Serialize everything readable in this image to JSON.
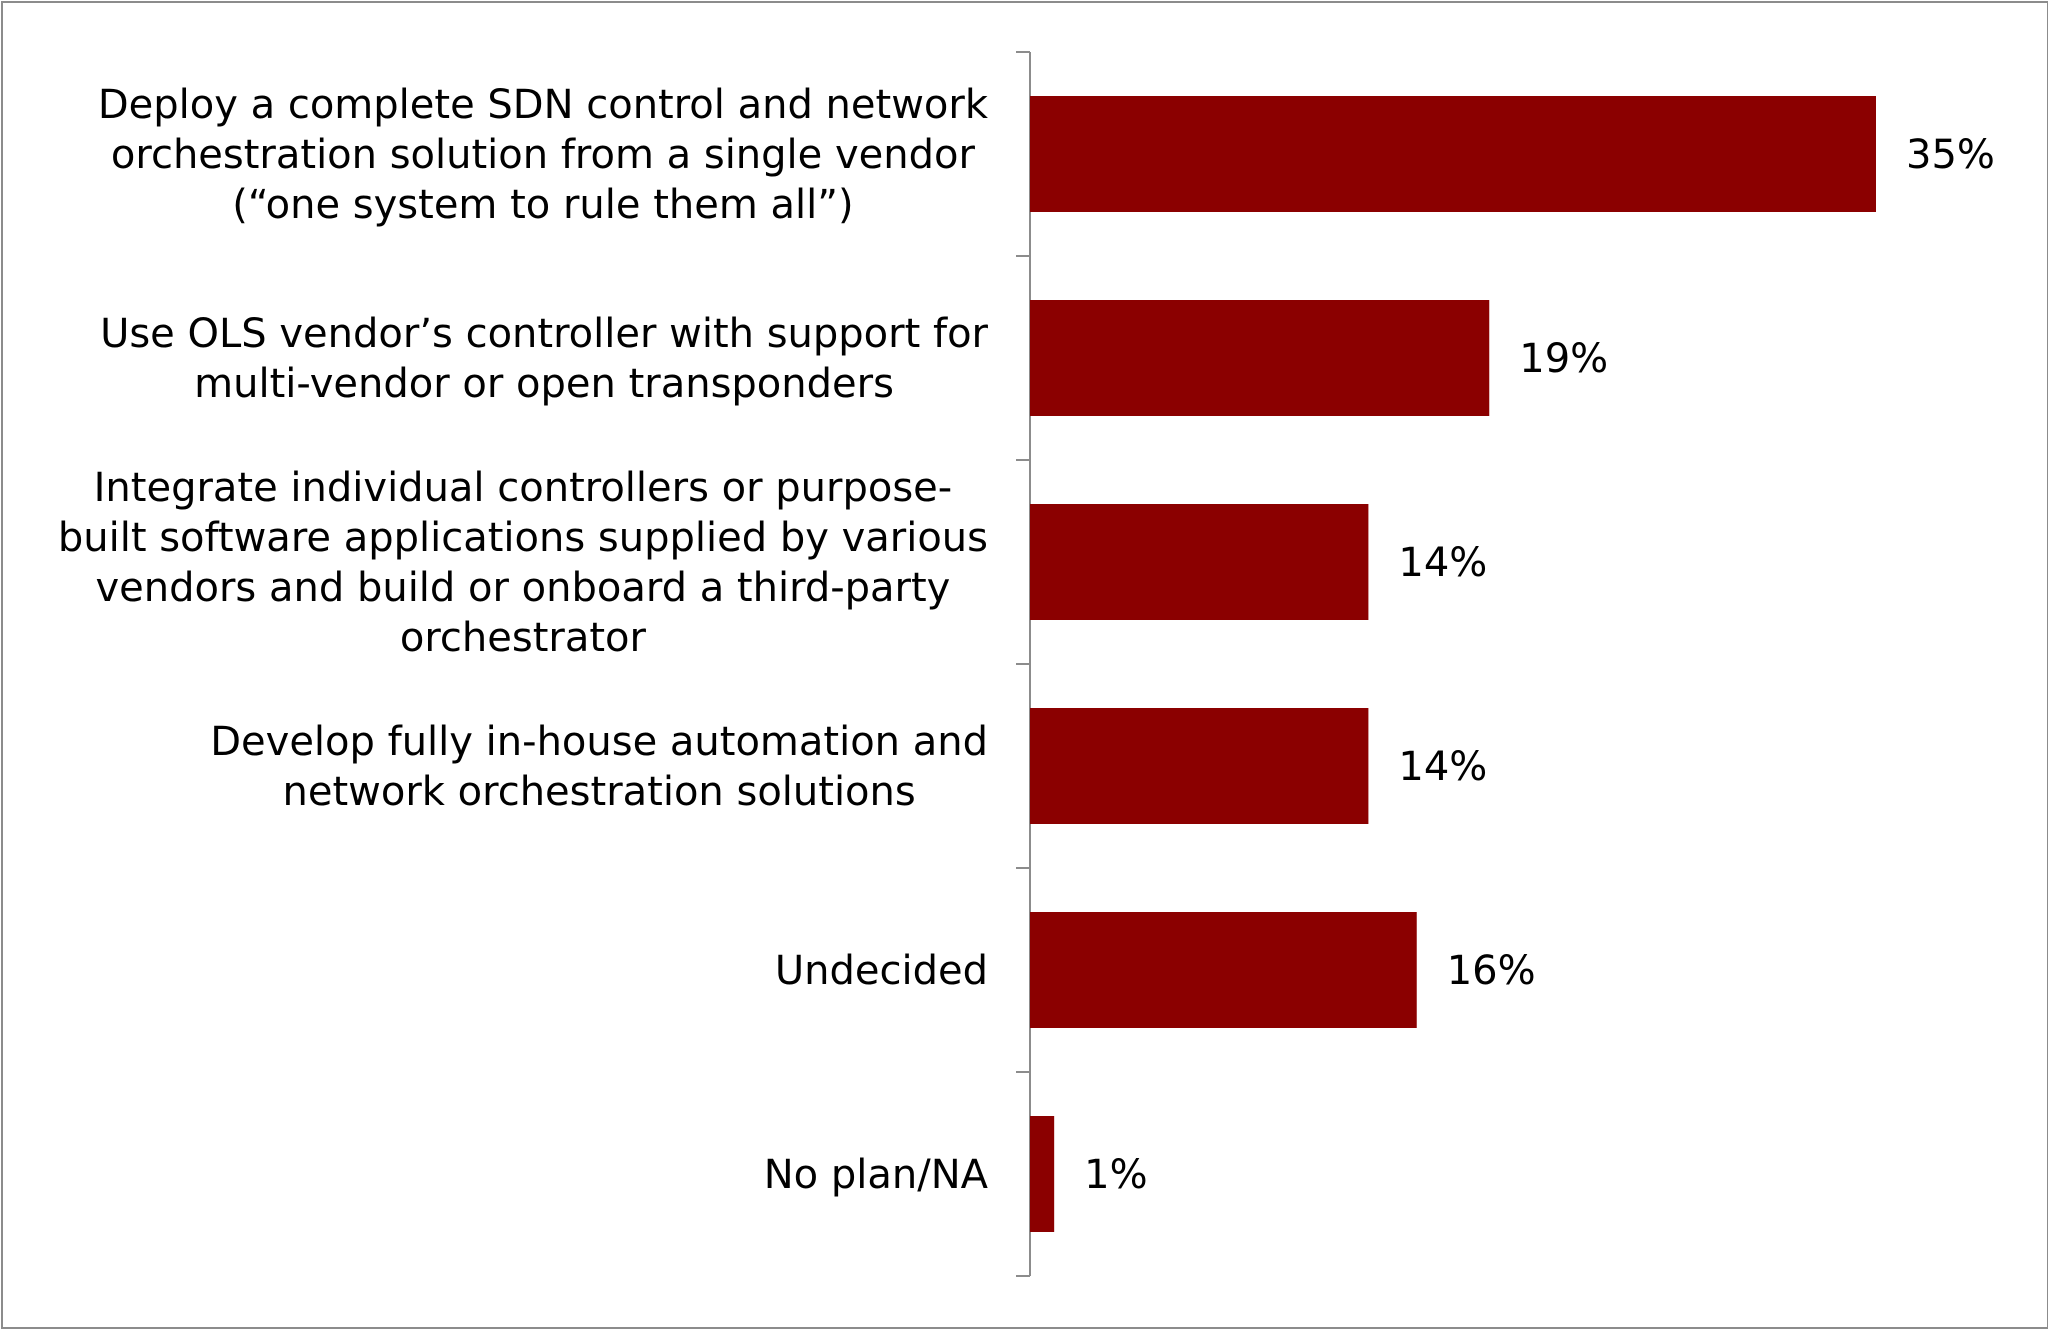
{
  "chart_data": {
    "type": "bar",
    "orientation": "horizontal",
    "title": "",
    "xlabel": "",
    "ylabel": "",
    "categories": [
      [
        "Deploy a complete SDN control and network",
        "orchestration solution from a single vendor",
        "(“one system to rule them all”)"
      ],
      [
        "Use OLS vendor’s controller with support for",
        "multi-vendor or open transponders"
      ],
      [
        "Integrate individual controllers or purpose-",
        "built software applications supplied by various",
        "vendors and build or onboard a third-party",
        "orchestrator"
      ],
      [
        "Develop fully in-house automation and",
        "network orchestration solutions"
      ],
      [
        "Undecided"
      ],
      [
        "No plan/NA"
      ]
    ],
    "values": [
      35,
      19,
      14,
      14,
      16,
      1
    ],
    "value_labels": [
      "35%",
      "19%",
      "14%",
      "14%",
      "16%",
      "1%"
    ],
    "unit": "%",
    "xlim": [
      0,
      40
    ],
    "bar_color": "#8b0000",
    "grid": false,
    "legend": "none"
  }
}
